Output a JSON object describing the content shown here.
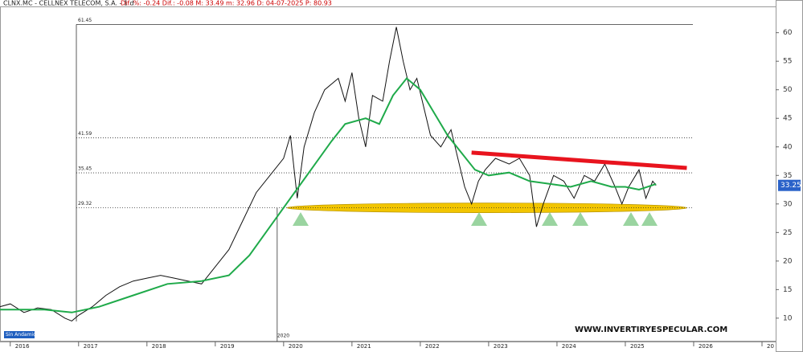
{
  "chart_data": {
    "type": "line",
    "title": "CLNX.MC - CELLNEX TELECOM, S.A. - 1 d",
    "header_stats": "Dif. %: -0.24  Dif.: -0.08  M: 33.49  m: 32.96  D: 04-07-2025  P: 80.93",
    "watermark": "WWW.INVERTIRYESPECULAR.COM",
    "badge": "Sin Andamios",
    "marker_label": "2020",
    "x": [
      2015.85,
      2016.0,
      2016.2,
      2016.4,
      2016.6,
      2016.8,
      2016.9,
      2017.0,
      2017.2,
      2017.4,
      2017.6,
      2017.8,
      2018.0,
      2018.2,
      2018.4,
      2018.6,
      2018.8,
      2019.0,
      2019.2,
      2019.4,
      2019.6,
      2019.8,
      2020.0,
      2020.1,
      2020.2,
      2020.3,
      2020.45,
      2020.6,
      2020.8,
      2020.9,
      2021.0,
      2021.1,
      2021.2,
      2021.3,
      2021.45,
      2021.55,
      2021.65,
      2021.75,
      2021.85,
      2021.95,
      2022.05,
      2022.15,
      2022.3,
      2022.45,
      2022.55,
      2022.65,
      2022.75,
      2022.85,
      2022.95,
      2023.1,
      2023.3,
      2023.45,
      2023.6,
      2023.7,
      2023.8,
      2023.95,
      2024.1,
      2024.25,
      2024.4,
      2024.55,
      2024.7,
      2024.85,
      2024.95,
      2025.05,
      2025.2,
      2025.3,
      2025.4,
      2025.45
    ],
    "series": [
      {
        "color": "#111111",
        "values": [
          12,
          12.5,
          11,
          11.8,
          11.5,
          10,
          9.5,
          10.5,
          12,
          14,
          15.5,
          16.5,
          17,
          17.5,
          17,
          16.5,
          16,
          19,
          22,
          27,
          32,
          35,
          38,
          42,
          31,
          40,
          46,
          50,
          52,
          48,
          53,
          45,
          40,
          49,
          48,
          55,
          61,
          55,
          50,
          52,
          47,
          42,
          40,
          43,
          38,
          33,
          30,
          34,
          36,
          38,
          37,
          38,
          35,
          26,
          30,
          35,
          34,
          31,
          35,
          34,
          37,
          33,
          30,
          33,
          36,
          31,
          34,
          33.25
        ]
      },
      {
        "color": "#1faa4a",
        "x": [
          2015.85,
          2016.5,
          2016.9,
          2017.3,
          2017.8,
          2018.3,
          2018.8,
          2019.2,
          2019.5,
          2019.8,
          2020.1,
          2020.4,
          2020.7,
          2020.9,
          2021.2,
          2021.4,
          2021.6,
          2021.8,
          2022.0,
          2022.2,
          2022.4,
          2022.6,
          2022.8,
          2023.0,
          2023.3,
          2023.6,
          2023.9,
          2024.2,
          2024.5,
          2024.8,
          2025.0,
          2025.2,
          2025.45
        ],
        "values": [
          11.5,
          11.5,
          11,
          12,
          14,
          16,
          16.5,
          17.5,
          21,
          26,
          31,
          36,
          41,
          44,
          45,
          44,
          49,
          52,
          50,
          46,
          42,
          39,
          36,
          35,
          35.5,
          34,
          33.5,
          33,
          34,
          33,
          33,
          32.5,
          33.5
        ]
      }
    ],
    "trendline": {
      "color": "#e8141e",
      "x": [
        2022.75,
        2025.9
      ],
      "y": [
        39,
        36.3
      ]
    },
    "levels": [
      61.45,
      41.59,
      35.45,
      29.32
    ],
    "last_price": 33.25,
    "xlim": [
      2015.85,
      2027.2
    ],
    "ylim": [
      5.9,
      64.6
    ],
    "xticks": [
      2016,
      2017,
      2018,
      2019,
      2020,
      2021,
      2022,
      2023,
      2024,
      2025,
      2026,
      {
        "value": 2027,
        "label": "20"
      }
    ],
    "yticks": [
      10,
      15,
      20,
      25,
      30,
      35,
      40,
      45,
      50,
      55,
      60
    ]
  }
}
